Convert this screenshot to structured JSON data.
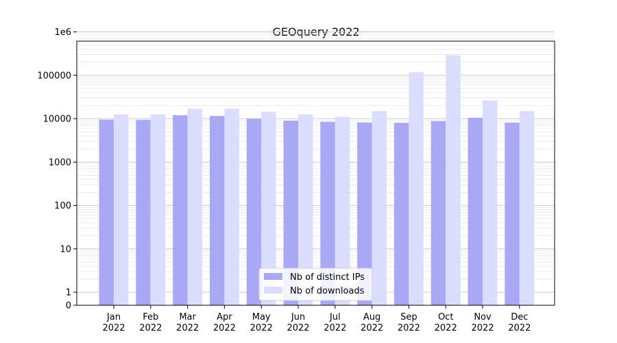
{
  "chart_data": {
    "type": "bar",
    "title": "GEOquery 2022",
    "xlabel": "",
    "ylabel": "",
    "y_scale": "symlog",
    "ylim": [
      0,
      1000000
    ],
    "y_ticks": [
      0,
      1,
      10,
      100,
      1000,
      10000,
      100000,
      1000000
    ],
    "y_tick_labels": [
      "0",
      "1",
      "10",
      "100",
      "1000",
      "10000",
      "100000",
      "1e6"
    ],
    "grid": true,
    "legend_position": "bottom-center",
    "categories": [
      "Jan\n2022",
      "Feb\n2022",
      "Mar\n2022",
      "Apr\n2022",
      "May\n2022",
      "Jun\n2022",
      "Jul\n2022",
      "Aug\n2022",
      "Sep\n2022",
      "Oct\n2022",
      "Nov\n2022",
      "Dec\n2022"
    ],
    "series": [
      {
        "name": "Nb of distinct IPs",
        "color": "#a8a8f5",
        "values": [
          9500,
          9400,
          12000,
          11500,
          10000,
          9000,
          8500,
          8200,
          8000,
          8800,
          10500,
          8100
        ]
      },
      {
        "name": "Nb of downloads",
        "color": "#dcdcfc",
        "values": [
          12500,
          12500,
          17000,
          17000,
          14500,
          12500,
          11000,
          15000,
          118000,
          290000,
          26000,
          15000
        ]
      }
    ]
  }
}
